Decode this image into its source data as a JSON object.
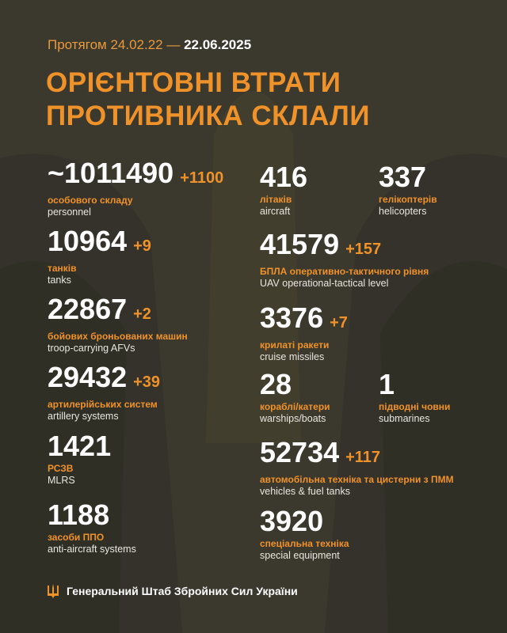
{
  "header": {
    "period_prefix": "Протягом 24.02.22 —",
    "period_end": "22.06.2025",
    "title_line1": "ОРІЄНТОВНІ ВТРАТИ",
    "title_line2": "ПРОТИВНИКА СКЛАЛИ"
  },
  "colors": {
    "background": "#3b382e",
    "accent": "#f0922a",
    "text": "#ffffff"
  },
  "stats": [
    {
      "value": "~1011490",
      "delta": "+1100",
      "ua": "особового складу",
      "en": "personnel"
    },
    {
      "value": "10964",
      "delta": "+9",
      "ua": "танків",
      "en": "tanks"
    },
    {
      "value": "22867",
      "delta": "+2",
      "ua": "бойових броньованих машин",
      "en": "troop-carrying AFVs"
    },
    {
      "value": "29432",
      "delta": "+39",
      "ua": "артилерійських систем",
      "en": "artillery systems"
    },
    {
      "value": "1421",
      "delta": "",
      "ua": "РСЗВ",
      "en": "MLRS"
    },
    {
      "value": "1188",
      "delta": "",
      "ua": "засоби ППО",
      "en": "anti-aircraft systems"
    },
    {
      "value": "416",
      "delta": "",
      "ua": "літаків",
      "en": "aircraft"
    },
    {
      "value": "337",
      "delta": "",
      "ua": "гелікоптерів",
      "en": "helicopters"
    },
    {
      "value": "41579",
      "delta": "+157",
      "ua": "БПЛА оперативно-тактичного рівня",
      "en": "UAV operational-tactical level"
    },
    {
      "value": "3376",
      "delta": "+7",
      "ua": "крилаті ракети",
      "en": "cruise missiles"
    },
    {
      "value": "28",
      "delta": "",
      "ua": "кораблі/катери",
      "en": "warships/boats"
    },
    {
      "value": "1",
      "delta": "",
      "ua": "підводні човни",
      "en": "submarines"
    },
    {
      "value": "52734",
      "delta": "+117",
      "ua": "автомобільна техніка та цистерни з ПММ",
      "en": "vehicles & fuel tanks"
    },
    {
      "value": "3920",
      "delta": "",
      "ua": "спеціальна техніка",
      "en": "special equipment"
    }
  ],
  "footer": {
    "icon": "trident-icon",
    "text": "Генеральний Штаб Збройних Сил України"
  }
}
